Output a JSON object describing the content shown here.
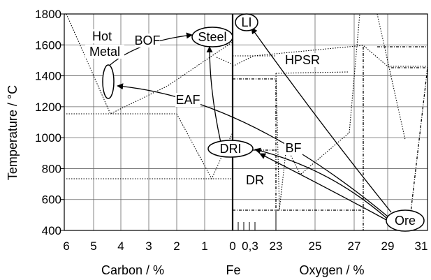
{
  "chart_data": {
    "type": "line",
    "title": "",
    "ylabel": "Temperature / °C",
    "xlabel_left": "Carbon / %",
    "xlabel_mid": "Fe",
    "xlabel_right": "Oxygen / %",
    "ylim": [
      400,
      1800
    ],
    "y_ticks": [
      "400",
      "600",
      "800",
      "1000",
      "1200",
      "1400",
      "1600",
      "1800"
    ],
    "x_ticks_carbon": [
      "6",
      "5",
      "4",
      "3",
      "2",
      "1",
      "0"
    ],
    "x_ticks_fe": [
      "0,3"
    ],
    "x_ticks_oxygen": [
      "23",
      "25",
      "27",
      "29",
      "31"
    ],
    "grid": true,
    "nodes": [
      {
        "id": "steel",
        "label": "Steel"
      },
      {
        "id": "li",
        "label": "LI"
      },
      {
        "id": "dri",
        "label": "DRI"
      },
      {
        "id": "ore",
        "label": "Ore"
      },
      {
        "id": "hot_metal",
        "label": ""
      }
    ],
    "annotations": [
      {
        "id": "hot",
        "text": "Hot"
      },
      {
        "id": "metal",
        "text": "Metal"
      },
      {
        "id": "bof",
        "text": "BOF"
      },
      {
        "id": "hpsr",
        "text": "HPSR"
      },
      {
        "id": "eaf",
        "text": "EAF"
      },
      {
        "id": "bf",
        "text": "BF"
      },
      {
        "id": "dr",
        "text": "DR"
      }
    ],
    "process_routes": [
      {
        "name": "BOF",
        "from": "hot_metal",
        "to": "steel"
      },
      {
        "name": "BF",
        "from": "ore",
        "to": "hot_metal"
      },
      {
        "name": "HPSR",
        "from": "ore",
        "to": "li"
      },
      {
        "name": "DR",
        "from": "ore",
        "to": "dri"
      },
      {
        "name": "EAF",
        "from": "dri",
        "to": "steel"
      }
    ]
  }
}
